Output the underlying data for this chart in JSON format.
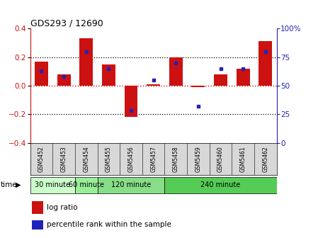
{
  "title": "GDS293 / 12690",
  "samples": [
    "GSM5452",
    "GSM5453",
    "GSM5454",
    "GSM5455",
    "GSM5456",
    "GSM5457",
    "GSM5458",
    "GSM5459",
    "GSM5460",
    "GSM5461",
    "GSM5462"
  ],
  "log_ratio": [
    0.17,
    0.08,
    0.33,
    0.15,
    -0.22,
    0.01,
    0.2,
    -0.01,
    0.08,
    0.12,
    0.31
  ],
  "percentile": [
    63,
    58,
    80,
    65,
    28,
    55,
    70,
    32,
    65,
    65,
    80
  ],
  "bar_color": "#cc1111",
  "dot_color": "#2222bb",
  "ylim_left": [
    -0.4,
    0.4
  ],
  "ylim_right": [
    0,
    100
  ],
  "yticks_left": [
    -0.4,
    -0.2,
    0.0,
    0.2,
    0.4
  ],
  "yticks_right": [
    0,
    25,
    50,
    75,
    100
  ],
  "ytick_labels_right": [
    "0",
    "25",
    "50",
    "75",
    "100%"
  ],
  "dotted_lines_black": [
    0.2,
    -0.2
  ],
  "dotted_line_red": 0.0,
  "groups": [
    {
      "label": "30 minute",
      "start": 0,
      "end": 1,
      "color": "#ccffcc"
    },
    {
      "label": "60 minute",
      "start": 2,
      "end": 2,
      "color": "#99ee99"
    },
    {
      "label": "120 minute",
      "start": 3,
      "end": 5,
      "color": "#88dd88"
    },
    {
      "label": "240 minute",
      "start": 6,
      "end": 10,
      "color": "#55cc55"
    }
  ],
  "time_label": "time",
  "legend_items": [
    {
      "label": "log ratio",
      "color": "#cc1111"
    },
    {
      "label": "percentile rank within the sample",
      "color": "#2222bb"
    }
  ],
  "bg_color": "#ffffff",
  "tick_label_color_left": "#cc1111",
  "tick_label_color_right": "#2222bb",
  "sample_bg_color": "#d8d8d8",
  "bar_width": 0.6
}
